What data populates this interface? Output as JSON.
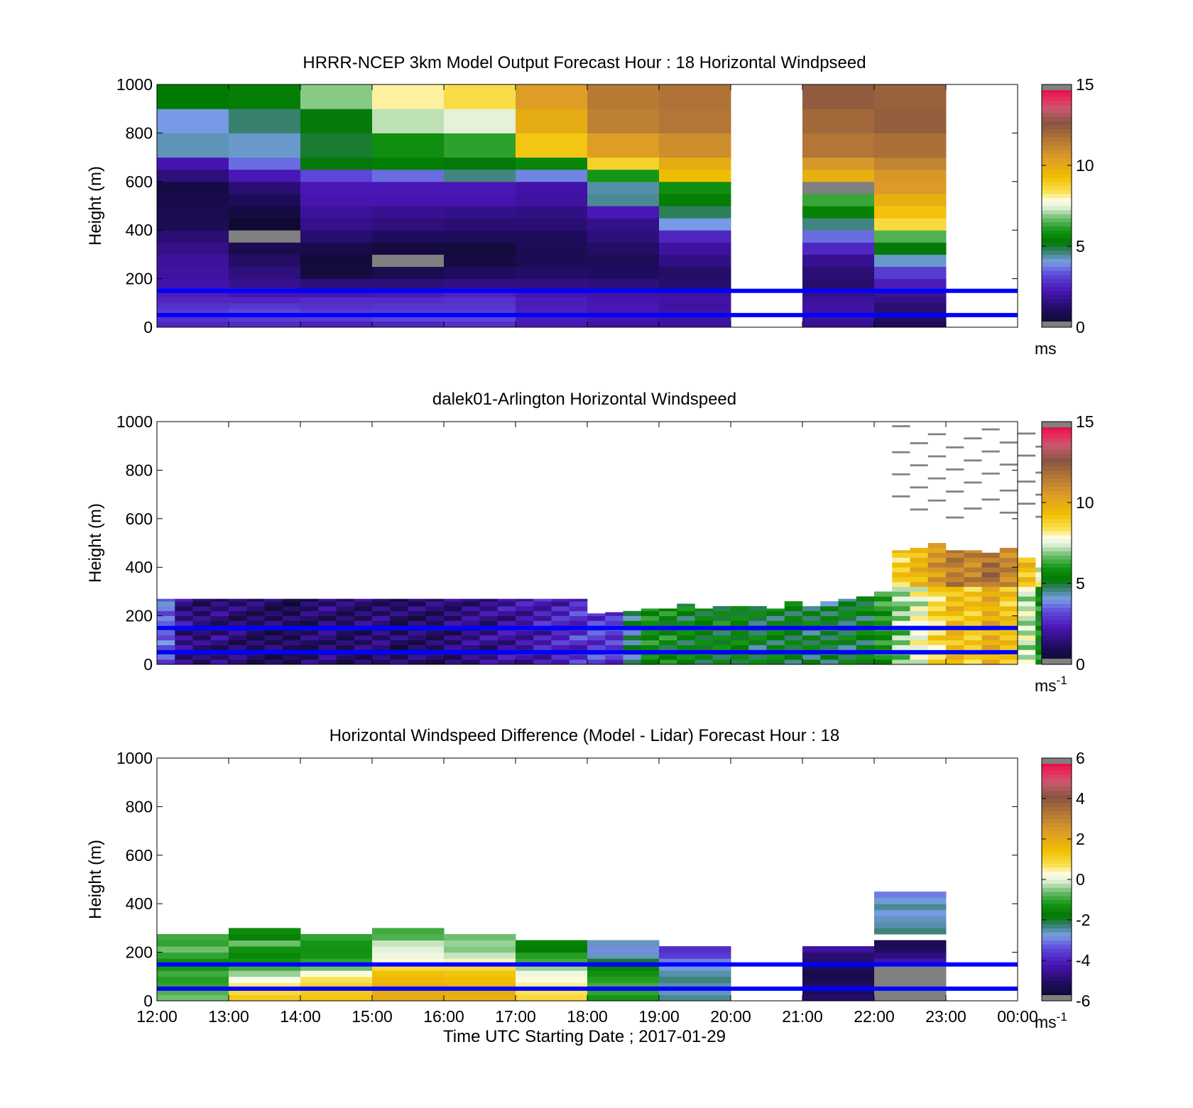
{
  "figure": {
    "xlabel": "Time UTC  Starting Date ; 2017-01-29",
    "xticks": [
      "12:00",
      "13:00",
      "14:00",
      "15:00",
      "16:00",
      "17:00",
      "18:00",
      "19:00",
      "20:00",
      "21:00",
      "22:00",
      "23:00",
      "00:00"
    ],
    "yticks": [
      "0",
      "200",
      "400",
      "600",
      "800",
      "1000"
    ],
    "ylabel": "Height (m)"
  },
  "overlay_lines_height_m": [
    50,
    150
  ],
  "chart_data": [
    {
      "type": "heatmap",
      "title": "HRRR-NCEP 3km Model Output   Forecast Hour : 18 Horizontal Windpseed",
      "ylabel": "Height (m)",
      "ylim": [
        0,
        1000
      ],
      "colorbar": {
        "range": [
          0,
          15
        ],
        "ticks": [
          "0",
          "5",
          "10",
          "15"
        ],
        "unit": "ms"
      },
      "x_hours": [
        12,
        13,
        14,
        15,
        16,
        17,
        18,
        19,
        20,
        21,
        22,
        23
      ],
      "height_bins_m": [
        0,
        25,
        50,
        75,
        100,
        125,
        150,
        200,
        250,
        300,
        350,
        400,
        450,
        500,
        550,
        600,
        650,
        700,
        800,
        900,
        1000
      ],
      "missing_hours": [
        20,
        23
      ],
      "values_ms": [
        [
          2.6,
          2.7,
          2.5,
          2.6,
          2.8,
          2.3,
          2.0,
          2.0,
          null,
          1.8,
          1.0,
          null
        ],
        [
          2.8,
          3.0,
          3.0,
          3.2,
          3.2,
          2.4,
          2.2,
          2.0,
          null,
          1.9,
          1.2,
          null
        ],
        [
          3.0,
          3.2,
          3.0,
          3.0,
          3.0,
          2.5,
          2.3,
          2.1,
          null,
          2.0,
          1.3,
          null
        ],
        [
          2.8,
          2.9,
          2.8,
          2.9,
          2.9,
          2.4,
          2.3,
          2.0,
          null,
          2.0,
          1.4,
          null
        ],
        [
          2.6,
          2.6,
          2.7,
          2.7,
          2.8,
          2.4,
          2.2,
          2.1,
          null,
          1.9,
          1.6,
          null
        ],
        [
          2.4,
          2.2,
          2.2,
          2.3,
          2.5,
          2.2,
          2.1,
          2.0,
          null,
          1.7,
          1.9,
          null
        ],
        [
          2.1,
          1.8,
          1.5,
          1.5,
          1.6,
          1.6,
          1.5,
          1.3,
          null,
          1.3,
          2.4,
          null
        ],
        [
          2.0,
          1.5,
          0.5,
          0.8,
          1.1,
          1.2,
          1.1,
          1.2,
          null,
          1.4,
          3.0,
          null
        ],
        [
          1.9,
          1.2,
          0.4,
          15.5,
          0.6,
          0.9,
          1.0,
          1.6,
          null,
          1.8,
          4.2,
          null
        ],
        [
          1.7,
          0.8,
          0.7,
          0.5,
          0.4,
          0.9,
          1.2,
          2.0,
          null,
          2.6,
          5.2,
          null
        ],
        [
          1.4,
          15.5,
          1.3,
          1.1,
          1.0,
          1.1,
          1.5,
          2.6,
          null,
          3.6,
          6.5,
          null
        ],
        [
          0.9,
          0.2,
          1.7,
          1.5,
          1.4,
          1.4,
          1.7,
          4.0,
          null,
          4.6,
          8.6,
          null
        ],
        [
          0.8,
          0.6,
          1.9,
          1.8,
          1.7,
          1.6,
          2.3,
          4.8,
          null,
          5.5,
          9.2,
          null
        ],
        [
          0.7,
          1.0,
          2.2,
          2.2,
          2.2,
          2.0,
          4.5,
          5.4,
          null,
          6.3,
          9.8,
          null
        ],
        [
          0.6,
          1.4,
          2.3,
          2.3,
          2.3,
          2.1,
          4.4,
          5.8,
          null,
          15.5,
          10.5,
          null
        ],
        [
          1.5,
          2.3,
          3.2,
          3.6,
          4.6,
          3.8,
          6.0,
          9.3,
          null,
          9.8,
          10.6,
          null
        ],
        [
          2.2,
          3.6,
          5.2,
          5.4,
          5.2,
          5.6,
          8.8,
          9.9,
          null,
          10.6,
          11.2,
          null
        ],
        [
          4.3,
          4.2,
          5.0,
          5.8,
          6.2,
          9.1,
          10.4,
          10.9,
          null,
          11.6,
          11.8,
          null
        ],
        [
          4.0,
          4.7,
          5.2,
          7.2,
          7.5,
          9.9,
          11.3,
          11.6,
          null,
          12.0,
          12.3,
          null
        ],
        [
          5.3,
          5.4,
          6.9,
          8.1,
          8.5,
          10.4,
          11.5,
          11.7,
          null,
          12.4,
          12.2,
          null
        ]
      ]
    },
    {
      "type": "heatmap",
      "title": "dalek01-Arlington  Horizontal Windspeed",
      "ylabel": "Height (m)",
      "ylim": [
        0,
        1000
      ],
      "colorbar": {
        "range": [
          0,
          15
        ],
        "ticks": [
          "0",
          "5",
          "10",
          "15"
        ],
        "unit": "ms-1"
      },
      "x_start_hour": 12,
      "x_step_hours": 0.25,
      "height_bins_m": [
        0,
        20,
        40,
        60,
        80,
        100,
        120,
        140,
        160,
        180,
        200,
        220,
        240,
        260,
        280,
        300,
        320,
        340,
        360,
        380,
        400,
        420,
        440,
        460,
        480,
        500,
        520,
        540,
        560,
        580,
        600,
        620,
        640,
        660,
        680,
        700,
        720,
        740,
        760,
        780,
        800,
        820,
        840,
        860,
        880,
        900,
        920,
        940,
        960,
        980,
        1000
      ],
      "profile_top_m": [
        270,
        270,
        270,
        270,
        270,
        270,
        270,
        270,
        270,
        270,
        270,
        270,
        270,
        270,
        270,
        270,
        270,
        270,
        270,
        270,
        270,
        270,
        270,
        270,
        210,
        215,
        220,
        230,
        230,
        250,
        230,
        240,
        240,
        240,
        230,
        260,
        240,
        260,
        270,
        280,
        300,
        470,
        480,
        500,
        470,
        470,
        460,
        480,
        440,
        410
      ],
      "regime_note": "dark purple/blue 12:00-17:45, green 18:00-21:00, white-yellow-brown 21:00-23:45",
      "values_ms": [
        [
          3.5,
          1.6,
          1.2,
          1.4,
          1.3,
          1.1,
          1.0,
          0.9,
          1.2,
          1.3,
          1.1,
          1.2,
          1.4,
          1.0,
          1.1,
          1.2,
          1.3,
          1.5,
          1.6,
          1.8,
          2.0,
          2.2,
          2.4,
          2.7,
          2.9,
          3.0,
          4.5,
          5.6,
          5.5,
          5.2,
          5.4,
          5.3,
          5.2,
          5.0,
          5.1,
          5.2,
          5.0,
          4.8,
          5.0,
          5.1,
          6.0,
          6.8,
          7.5,
          8.5,
          9.3,
          9.0,
          9.8,
          9.0,
          7.2,
          5.6
        ],
        [
          3.7,
          1.7,
          1.3,
          1.5,
          1.2,
          1.2,
          1.0,
          0.8,
          1.1,
          1.4,
          1.2,
          1.3,
          1.3,
          1.1,
          1.2,
          1.3,
          1.4,
          1.6,
          1.7,
          1.9,
          2.1,
          2.3,
          2.5,
          2.8,
          3.0,
          3.1,
          4.6,
          5.7,
          5.6,
          5.3,
          5.5,
          5.4,
          5.3,
          5.1,
          5.2,
          5.3,
          5.1,
          4.9,
          5.1,
          5.2,
          6.1,
          6.9,
          7.6,
          8.6,
          9.4,
          9.1,
          9.9,
          9.1,
          7.3,
          5.7
        ],
        [
          3.8,
          1.8,
          1.4,
          1.6,
          1.3,
          1.3,
          1.1,
          0.9,
          1.2,
          1.5,
          1.3,
          1.4,
          1.4,
          1.2,
          1.3,
          1.4,
          1.5,
          1.7,
          1.8,
          2.0,
          2.2,
          2.4,
          2.6,
          2.9,
          3.1,
          3.2,
          4.7,
          5.8,
          5.7,
          5.4,
          5.6,
          5.5,
          5.4,
          5.2,
          5.3,
          5.4,
          5.2,
          5.0,
          5.2,
          5.3,
          6.2,
          7.0,
          7.7,
          8.7,
          9.5,
          9.2,
          10.0,
          9.2,
          7.4,
          5.8
        ]
      ]
    },
    {
      "type": "heatmap",
      "title": "Horizontal Windspeed Difference (Model - Lidar) Forecast Hour : 18",
      "ylabel": "Height (m)",
      "xlabel": "Time UTC  Starting Date ; 2017-01-29",
      "ylim": [
        0,
        1000
      ],
      "colorbar": {
        "range": [
          -6,
          6
        ],
        "ticks": [
          "-6",
          "-4",
          "-2",
          "0",
          "2",
          "4",
          "6"
        ],
        "unit": "ms-1"
      },
      "x_hours": [
        12,
        13,
        14,
        15,
        16,
        17,
        18,
        19,
        20,
        21,
        22,
        23
      ],
      "height_bins_m": [
        0,
        25,
        50,
        75,
        100,
        125,
        150,
        175,
        200,
        225,
        250,
        275,
        300,
        325,
        350,
        375,
        400,
        425,
        450
      ],
      "missing_hours": [
        20,
        23
      ],
      "values_ms": [
        [
          -0.6,
          1.2,
          1.3,
          2.0,
          1.8,
          0.9,
          -1.2,
          -2.4,
          null,
          -5.0,
          6.5,
          null
        ],
        [
          -0.8,
          0.9,
          1.2,
          1.9,
          1.9,
          0.7,
          -1.0,
          -2.6,
          null,
          -5.2,
          6.5,
          null
        ],
        [
          -1.0,
          0.6,
          1.0,
          1.8,
          1.7,
          0.5,
          -0.9,
          -2.5,
          null,
          -5.1,
          6.5,
          null
        ],
        [
          -1.1,
          0.2,
          0.7,
          1.6,
          1.5,
          0.3,
          -1.1,
          -2.3,
          null,
          -5.3,
          6.5,
          null
        ],
        [
          -0.9,
          -0.4,
          0.3,
          1.4,
          1.3,
          0.1,
          -1.3,
          -2.5,
          null,
          -5.4,
          6.5,
          null
        ],
        [
          -1.2,
          -0.9,
          -0.6,
          0.9,
          0.9,
          -0.4,
          -1.6,
          -2.7,
          null,
          -5.2,
          6.5,
          null
        ],
        [
          -1.3,
          -1.3,
          -1.0,
          0.3,
          0.4,
          -0.9,
          -2.0,
          -3.0,
          null,
          -5.0,
          -4.3,
          null
        ],
        [
          -1.0,
          -1.5,
          -1.2,
          0.1,
          -0.2,
          -1.1,
          -2.6,
          -3.6,
          null,
          -4.9,
          -4.8,
          null
        ],
        [
          -0.6,
          -1.3,
          -1.3,
          0.0,
          -0.5,
          -1.7,
          -2.9,
          -3.8,
          null,
          -4.4,
          -5.1,
          null
        ],
        [
          -1.0,
          -0.6,
          -1.2,
          -0.2,
          -0.4,
          -1.6,
          -2.6,
          null,
          null,
          null,
          -5.3,
          null
        ],
        [
          -0.9,
          -1.6,
          -1.0,
          -0.8,
          -0.6,
          null,
          null,
          null,
          null,
          null,
          null,
          null
        ],
        [
          null,
          -1.4,
          null,
          -0.9,
          null,
          null,
          null,
          null,
          null,
          null,
          -2.3,
          null
        ],
        [
          null,
          null,
          null,
          null,
          null,
          null,
          null,
          null,
          null,
          null,
          -2.5,
          null
        ],
        [
          null,
          null,
          null,
          null,
          null,
          null,
          null,
          null,
          null,
          null,
          -2.6,
          null
        ],
        [
          null,
          null,
          null,
          null,
          null,
          null,
          null,
          null,
          null,
          null,
          -2.8,
          null
        ],
        [
          null,
          null,
          null,
          null,
          null,
          null,
          null,
          null,
          null,
          null,
          -2.4,
          null
        ],
        [
          null,
          null,
          null,
          null,
          null,
          null,
          null,
          null,
          null,
          null,
          -2.7,
          null
        ],
        [
          null,
          null,
          null,
          null,
          null,
          null,
          null,
          null,
          null,
          null,
          -3.0,
          null
        ]
      ]
    }
  ]
}
